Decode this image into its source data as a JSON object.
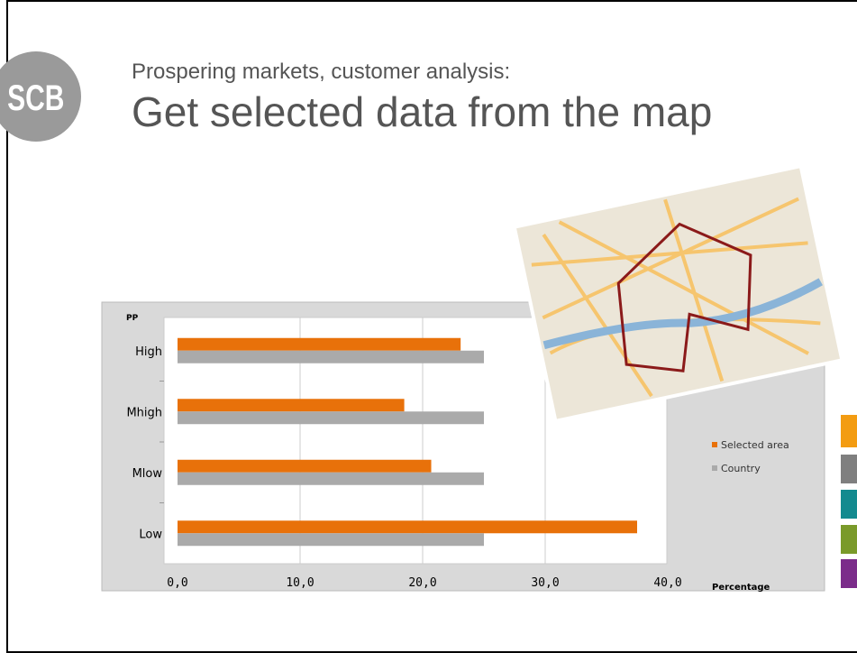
{
  "header": {
    "subtitle": "Prospering markets, customer analysis:",
    "title": "Get selected data from the map",
    "logo": "SCB"
  },
  "chart_data": {
    "type": "barh",
    "y_axis_label": "PP",
    "x_axis_label": "Percentage",
    "categories": [
      "High",
      "Mhigh",
      "Mlow",
      "Low"
    ],
    "series": [
      {
        "name": "Selected area",
        "color": "#e8710a",
        "values": [
          23.1,
          18.5,
          20.7,
          37.5
        ]
      },
      {
        "name": "Country",
        "color": "#aaaaaa",
        "values": [
          25,
          25,
          25,
          25
        ]
      }
    ],
    "xlim": [
      0,
      40
    ],
    "xticks": [
      {
        "value": 0,
        "label": "0,0"
      },
      {
        "value": 10,
        "label": "10,0"
      },
      {
        "value": 20,
        "label": "20,0"
      },
      {
        "value": 30,
        "label": "30,0"
      },
      {
        "value": 40,
        "label": "40,0"
      }
    ],
    "grid": true,
    "legend": "right"
  }
}
